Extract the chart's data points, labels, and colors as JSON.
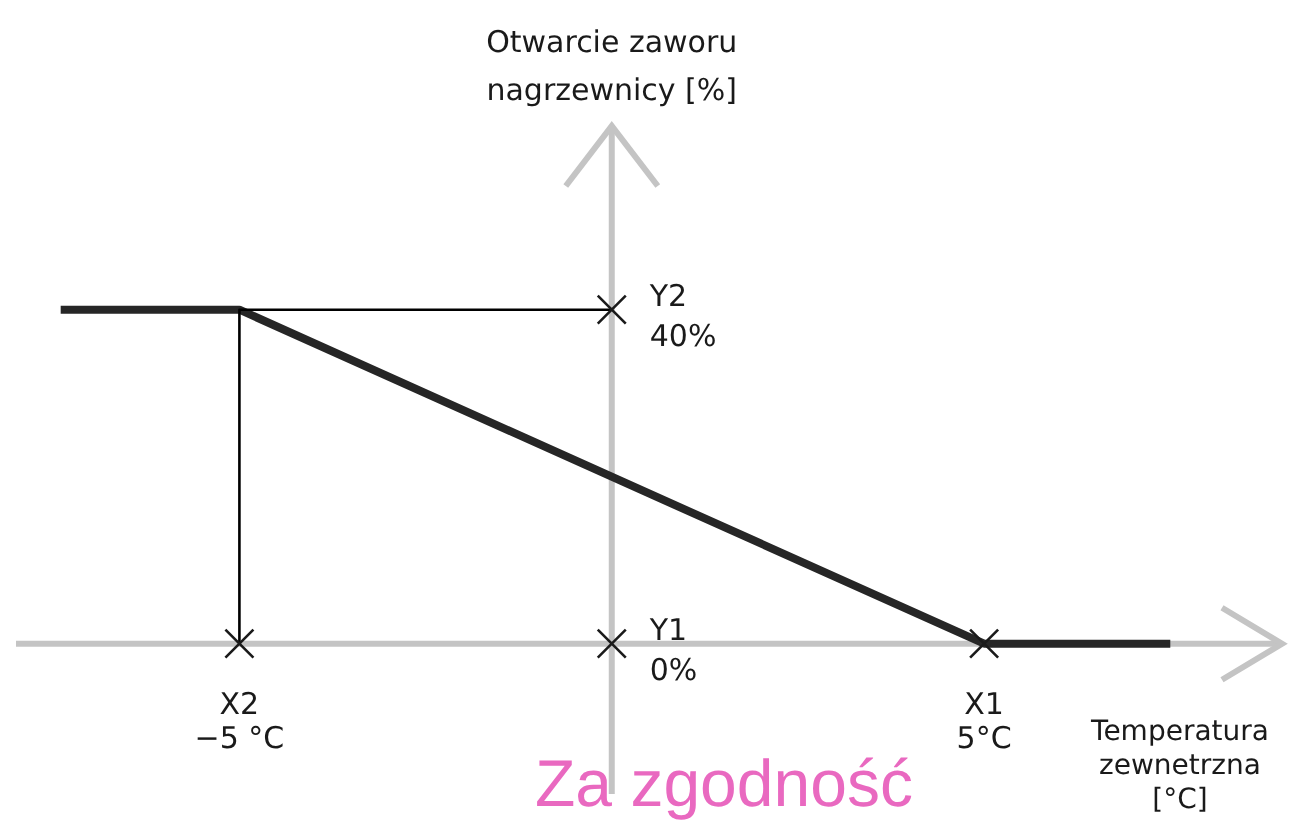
{
  "chart_data": {
    "type": "line",
    "xlabel": "Temperatura\nzewnetrzna\n[°C]",
    "ylabel": "Otwarcie zaworu\nnagrzewnicy [%]",
    "annotations": [
      {
        "text": "X2",
        "x": -5,
        "y": 0
      },
      {
        "text": "Y1",
        "x": 0,
        "y": 0
      },
      {
        "text": "X1",
        "x": 5,
        "y": 0
      },
      {
        "text": "Y2",
        "x": 0,
        "y": 40
      },
      "Za zgodność"
    ],
    "series": [
      {
        "color": "#262626",
        "x": [
          -7.4,
          -5,
          5,
          7.5
        ],
        "values": [
          40,
          40,
          0,
          0
        ]
      },
      {
        "color": "#000000",
        "x": [
          0,
          -5,
          -5
        ],
        "values": [
          40,
          40,
          0
        ]
      },
      {
        "type": "scatter",
        "color": "#1a1a1a",
        "x": [
          -5,
          0,
          5,
          0
        ],
        "values": [
          0,
          0,
          0,
          40
        ],
        "marker": "cross"
      }
    ],
    "xlim": [
      -8,
      9
    ],
    "ylim": [
      -18,
      62
    ],
    "xticks": [
      {
        "value": -5,
        "label": "−5 °C"
      },
      {
        "value": 5,
        "label": "5°C"
      }
    ],
    "yticks": [
      {
        "value": 0,
        "label": "0%"
      },
      {
        "value": 40,
        "label": "40%"
      }
    ],
    "marker": "none",
    "line_style": "solid"
  }
}
